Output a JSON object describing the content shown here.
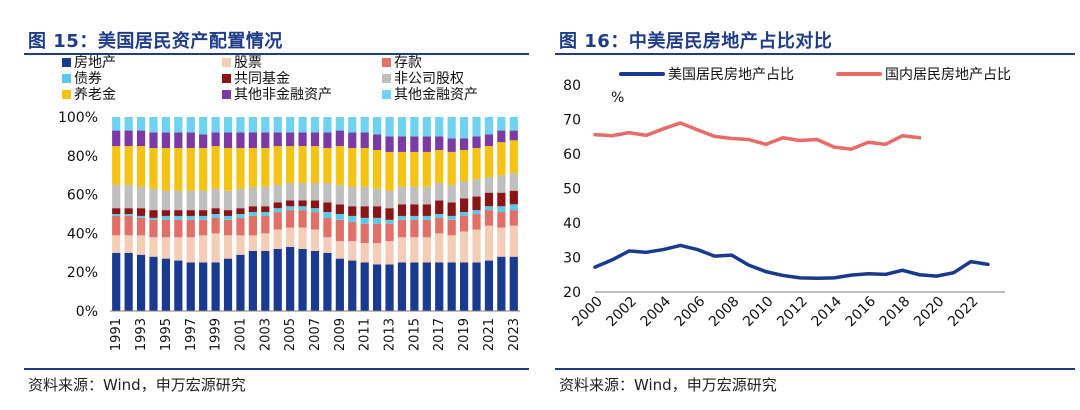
{
  "left": {
    "title": "图 15：美国居民资产配置情况",
    "source": "资料来源：Wind，申万宏源研究"
  },
  "right": {
    "title": "图 16：中美居民房地产占比对比",
    "source": "资料来源：Wind，申万宏源研究"
  },
  "chart_data": [
    {
      "type": "bar",
      "stacked": true,
      "categories": [
        "1991",
        "1992",
        "1993",
        "1994",
        "1995",
        "1996",
        "1997",
        "1998",
        "1999",
        "2000",
        "2001",
        "2002",
        "2003",
        "2004",
        "2005",
        "2006",
        "2007",
        "2008",
        "2009",
        "2010",
        "2011",
        "2012",
        "2013",
        "2014",
        "2015",
        "2016",
        "2017",
        "2018",
        "2019",
        "2020",
        "2021",
        "2022",
        "2023"
      ],
      "xtick_labels": [
        "1991",
        "",
        "1993",
        "",
        "1995",
        "",
        "1997",
        "",
        "1999",
        "",
        "2001",
        "",
        "2003",
        "",
        "2005",
        "",
        "2007",
        "",
        "2009",
        "",
        "2011",
        "",
        "2013",
        "",
        "2015",
        "",
        "2017",
        "",
        "2019",
        "",
        "2021",
        "",
        "2023"
      ],
      "ylim": [
        0,
        100
      ],
      "yticks": [
        "0%",
        "20%",
        "40%",
        "60%",
        "80%",
        "100%"
      ],
      "legend_placement": "top",
      "grid": false,
      "series": [
        {
          "name": "房地产",
          "color": "#1a3a8f",
          "values": [
            30,
            30,
            29,
            28,
            27,
            26,
            25,
            25,
            25,
            27,
            29,
            31,
            31,
            32,
            33,
            32,
            31,
            30,
            27,
            26,
            25,
            24,
            24,
            25,
            25,
            25,
            25,
            25,
            25,
            25,
            26,
            28,
            28
          ]
        },
        {
          "name": "股票",
          "color": "#f4cdb6",
          "values": [
            9,
            9,
            10,
            10,
            11,
            12,
            13,
            14,
            15,
            12,
            10,
            8,
            9,
            10,
            10,
            11,
            11,
            8,
            9,
            10,
            10,
            11,
            12,
            13,
            13,
            13,
            15,
            14,
            16,
            17,
            18,
            15,
            16
          ]
        },
        {
          "name": "存款",
          "color": "#e07068",
          "values": [
            10,
            10,
            9,
            9,
            9,
            9,
            9,
            8,
            8,
            8,
            9,
            10,
            9,
            9,
            9,
            9,
            9,
            10,
            11,
            10,
            10,
            10,
            9,
            9,
            9,
            9,
            8,
            8,
            8,
            8,
            8,
            8,
            8
          ]
        },
        {
          "name": "债券",
          "color": "#5bc8ea",
          "values": [
            1,
            1,
            1,
            1,
            2,
            2,
            2,
            2,
            2,
            2,
            2,
            2,
            2,
            2,
            2,
            2,
            2,
            3,
            3,
            3,
            3,
            3,
            2,
            2,
            2,
            2,
            2,
            2,
            2,
            2,
            2,
            3,
            3
          ]
        },
        {
          "name": "共同基金",
          "color": "#8b1414",
          "values": [
            3,
            3,
            4,
            4,
            3,
            3,
            3,
            3,
            3,
            3,
            3,
            3,
            3,
            3,
            3,
            3,
            4,
            5,
            5,
            5,
            6,
            6,
            6,
            6,
            6,
            6,
            7,
            7,
            7,
            7,
            7,
            7,
            7
          ]
        },
        {
          "name": "非公司股权",
          "color": "#bfbfbf",
          "values": [
            12,
            12,
            11,
            11,
            10,
            10,
            10,
            10,
            10,
            10,
            10,
            10,
            10,
            9,
            9,
            9,
            9,
            10,
            10,
            10,
            10,
            9,
            9,
            9,
            9,
            9,
            9,
            9,
            9,
            9,
            8,
            9,
            9
          ]
        },
        {
          "name": "养老金",
          "color": "#f5c314",
          "values": [
            20,
            20,
            21,
            21,
            22,
            22,
            22,
            22,
            22,
            22,
            21,
            20,
            20,
            20,
            19,
            19,
            19,
            18,
            20,
            20,
            20,
            20,
            20,
            18,
            18,
            18,
            17,
            17,
            16,
            16,
            16,
            17,
            17
          ]
        },
        {
          "name": "其他非金融资产",
          "color": "#7b3aa5",
          "values": [
            8,
            8,
            8,
            8,
            8,
            8,
            8,
            7,
            7,
            8,
            8,
            8,
            8,
            7,
            7,
            7,
            7,
            8,
            8,
            8,
            8,
            8,
            8,
            8,
            8,
            8,
            7,
            7,
            6,
            6,
            6,
            6,
            5
          ]
        },
        {
          "name": "其他金融资产",
          "color": "#6fd3f0",
          "values": [
            7,
            7,
            7,
            8,
            8,
            8,
            8,
            9,
            8,
            8,
            8,
            8,
            8,
            8,
            8,
            8,
            8,
            8,
            7,
            8,
            8,
            9,
            10,
            10,
            10,
            10,
            10,
            11,
            11,
            10,
            9,
            7,
            7
          ]
        }
      ]
    },
    {
      "type": "line",
      "ylim": [
        20,
        80
      ],
      "yticks": [
        "20",
        "30",
        "40",
        "50",
        "60",
        "70",
        "80"
      ],
      "yunit": "%",
      "xlim": [
        2000,
        2024
      ],
      "xtick_labels": [
        "2000",
        "2002",
        "2004",
        "2006",
        "2008",
        "2010",
        "2012",
        "2014",
        "2016",
        "2018",
        "2020",
        "2022"
      ],
      "legend_placement": "top",
      "grid": false,
      "series": [
        {
          "name": "美国居民房地产占比",
          "color": "#1a3a8f",
          "x": [
            2000,
            2001,
            2002,
            2003,
            2004,
            2005,
            2006,
            2007,
            2008,
            2009,
            2010,
            2011,
            2012,
            2013,
            2014,
            2015,
            2016,
            2017,
            2018,
            2019,
            2020,
            2021,
            2022,
            2023
          ],
          "values": [
            27.2,
            29.3,
            31.9,
            31.5,
            32.3,
            33.5,
            32.3,
            30.4,
            30.7,
            27.8,
            25.9,
            24.8,
            24.1,
            24.0,
            24.1,
            24.9,
            25.3,
            25.1,
            26.3,
            25.0,
            24.6,
            25.6,
            28.8,
            28.0
          ]
        },
        {
          "name": "国内居民房地产占比",
          "color": "#e86b67",
          "x": [
            2000,
            2001,
            2002,
            2003,
            2004,
            2005,
            2006,
            2007,
            2008,
            2009,
            2010,
            2011,
            2012,
            2013,
            2014,
            2015,
            2016,
            2017,
            2018,
            2019
          ],
          "values": [
            65.6,
            65.3,
            66.2,
            65.4,
            67.3,
            69.0,
            67.0,
            65.1,
            64.5,
            64.2,
            62.8,
            64.7,
            63.9,
            64.2,
            62.0,
            61.4,
            63.4,
            62.8,
            65.3,
            64.7
          ]
        }
      ]
    }
  ]
}
